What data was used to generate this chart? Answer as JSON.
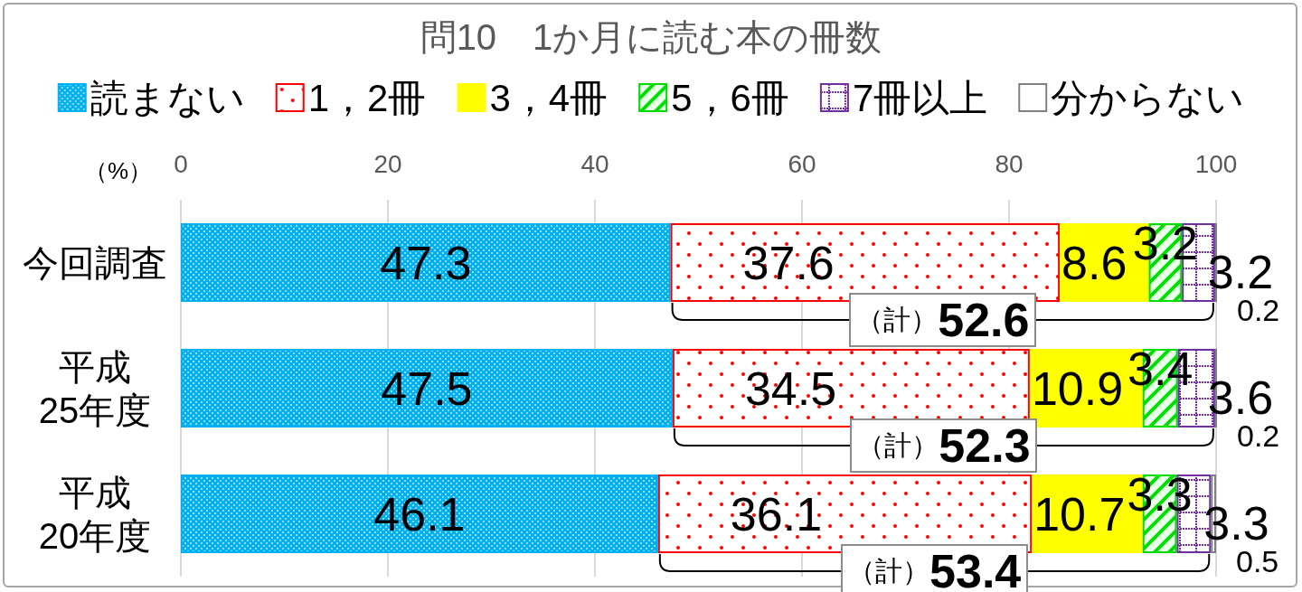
{
  "chart_data": {
    "type": "bar",
    "orientation": "horizontal",
    "stacked": true,
    "title": "問10　1か月に読む本の冊数",
    "xlabel": "（%）",
    "categories": [
      "今回調査",
      "平成\n25年度",
      "平成\n20年度"
    ],
    "series": [
      {
        "name": "読まない",
        "color": "#00b0f0",
        "values": [
          47.3,
          47.5,
          46.1
        ]
      },
      {
        "name": "1，2冊",
        "color": "#ff0000",
        "values": [
          37.6,
          34.5,
          36.1
        ]
      },
      {
        "name": "3，4冊",
        "color": "#ffff00",
        "values": [
          8.6,
          10.9,
          10.7
        ]
      },
      {
        "name": "5，6冊",
        "color": "#00dd00",
        "values": [
          3.2,
          3.4,
          3.3
        ]
      },
      {
        "name": "7冊以上",
        "color": "#7030a0",
        "values": [
          3.2,
          3.6,
          3.3
        ]
      },
      {
        "name": "分からない",
        "color": "#808080",
        "values": [
          0.2,
          0.2,
          0.5
        ]
      }
    ],
    "xlim": [
      0,
      100
    ],
    "xticks": [
      0,
      20,
      40,
      60,
      80,
      100
    ],
    "grid": "x",
    "legend": "top",
    "data_labels": true,
    "annotations": [
      "（計）52.6",
      "（計）52.3",
      "（計）53.4"
    ]
  }
}
